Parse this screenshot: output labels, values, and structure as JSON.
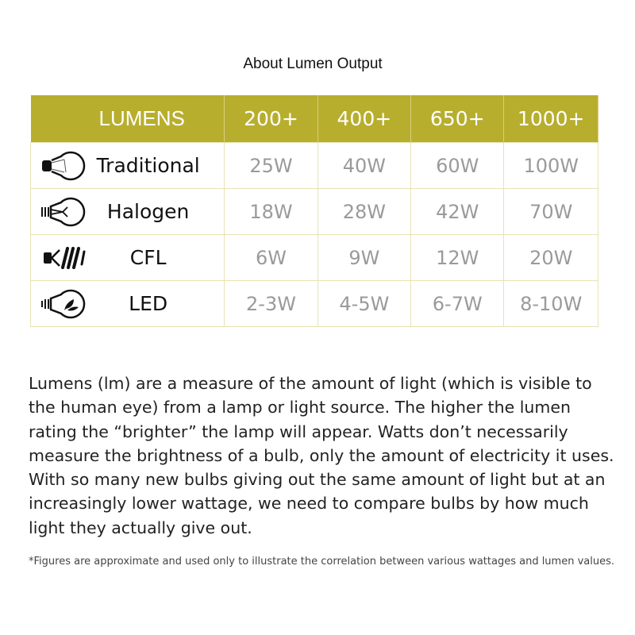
{
  "title": "About Lumen Output",
  "table": {
    "header": [
      "LUMENS",
      "200+",
      "400+",
      "650+",
      "1000+"
    ],
    "rows": [
      {
        "type": "Traditional",
        "icon": "incandescent-bulb-icon",
        "values": [
          "25W",
          "40W",
          "60W",
          "100W"
        ]
      },
      {
        "type": "Halogen",
        "icon": "halogen-bulb-icon",
        "values": [
          "18W",
          "28W",
          "42W",
          "70W"
        ]
      },
      {
        "type": "CFL",
        "icon": "cfl-bulb-icon",
        "values": [
          "6W",
          "9W",
          "12W",
          "20W"
        ]
      },
      {
        "type": "LED",
        "icon": "led-bulb-icon",
        "values": [
          "2-3W",
          "4-5W",
          "6-7W",
          "8-10W"
        ]
      }
    ]
  },
  "paragraph": "Lumens (lm) are a measure of the amount of light (which is visible to the human eye) from a lamp or light source. The higher the lumen rating the “brighter” the lamp will appear. Watts don’t necessarily measure the brightness of a bulb, only the amount of electricity it uses. With so many new bulbs giving out the same amount of light but at an increasingly lower wattage, we need to compare bulbs by how much light they actually give out.",
  "footnote": "*Figures are approximate and used only to illustrate the correlation between various wattages and lumen values.",
  "colors": {
    "header_bg": "#b8ae2e",
    "border": "#e8e3b4",
    "value_text": "#9a9a9a"
  }
}
